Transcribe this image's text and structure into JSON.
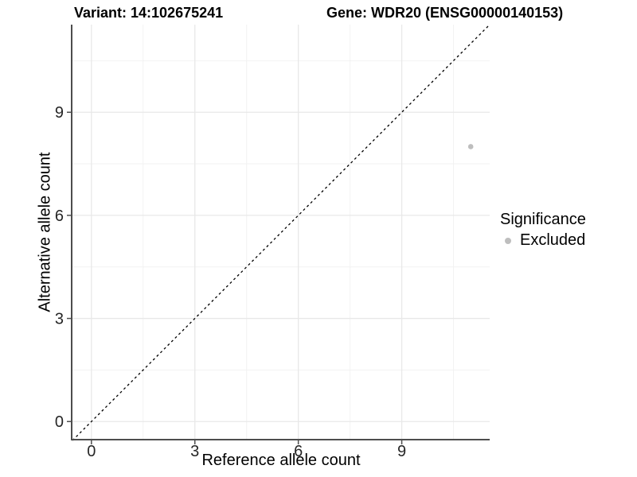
{
  "header": {
    "variant_title": "Variant: 14:102675241",
    "gene_title": "Gene: WDR20 (ENSG00000140153)"
  },
  "legend": {
    "title": "Significance",
    "items": [
      {
        "label": "Excluded",
        "color": "#bebebe"
      }
    ]
  },
  "chart_data": {
    "type": "scatter",
    "title": "Variant: 14:102675241   Gene: WDR20 (ENSG00000140153)",
    "xlabel": "Reference allele count",
    "ylabel": "Alternative allele count",
    "xlim": [
      -0.55,
      11.55
    ],
    "ylim": [
      -0.55,
      11.55
    ],
    "x_ticks": [
      0,
      3,
      6,
      9
    ],
    "y_ticks": [
      0,
      3,
      6,
      9
    ],
    "x_minor_ticks": [
      1.5,
      4.5,
      7.5,
      10.5
    ],
    "y_minor_ticks": [
      1.5,
      4.5,
      7.5,
      10.5
    ],
    "grid": "major+minor",
    "legend_position": "right",
    "identity_line": {
      "slope": 1,
      "intercept": 0,
      "style": "dashed",
      "color": "#000000"
    },
    "series": [
      {
        "name": "Excluded",
        "color": "#bebebe",
        "points": [
          {
            "x": 11,
            "y": 8
          }
        ]
      }
    ],
    "colors": {
      "major_grid": "#e8e8e8",
      "minor_grid": "#f2f2f2",
      "axis_line": "#4d4d4d",
      "tick_text": "#262626",
      "background": "#ffffff"
    }
  }
}
